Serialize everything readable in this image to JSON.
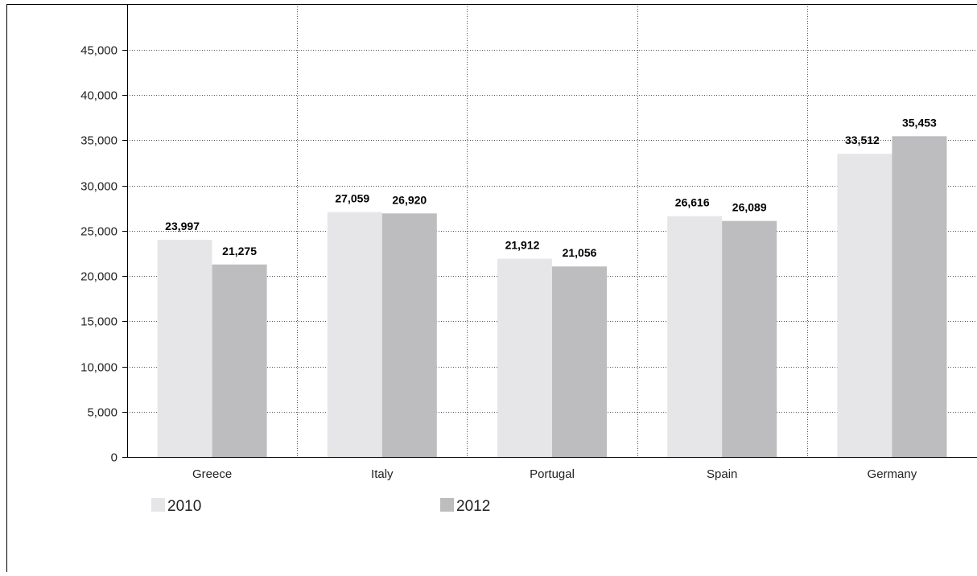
{
  "chart_data": {
    "type": "bar",
    "title": "",
    "xlabel": "",
    "ylabel": "",
    "categories": [
      "Greece",
      "Italy",
      "Portugal",
      "Spain",
      "Germany"
    ],
    "series": [
      {
        "name": "2010",
        "values": [
          23997,
          27059,
          21912,
          26616,
          33512
        ],
        "labels": [
          "23,997",
          "27,059",
          "21,912",
          "26,616",
          "33,512"
        ],
        "color": "#e6e6e8"
      },
      {
        "name": "2012",
        "values": [
          21275,
          26920,
          21056,
          26089,
          35453
        ],
        "labels": [
          "21,275",
          "26,920",
          "21,056",
          "26,089",
          "35,453"
        ],
        "color": "#bdbdbf"
      }
    ],
    "ylim": [
      0,
      45000
    ],
    "yticks": [
      0,
      5000,
      10000,
      15000,
      20000,
      25000,
      30000,
      35000,
      40000,
      45000
    ],
    "ytick_labels": [
      "0",
      "5,000",
      "10,000",
      "15,000",
      "20,000",
      "25,000",
      "30,000",
      "35,000",
      "40,000",
      "45,000"
    ],
    "grid": true,
    "legend_position": "bottom-left"
  }
}
